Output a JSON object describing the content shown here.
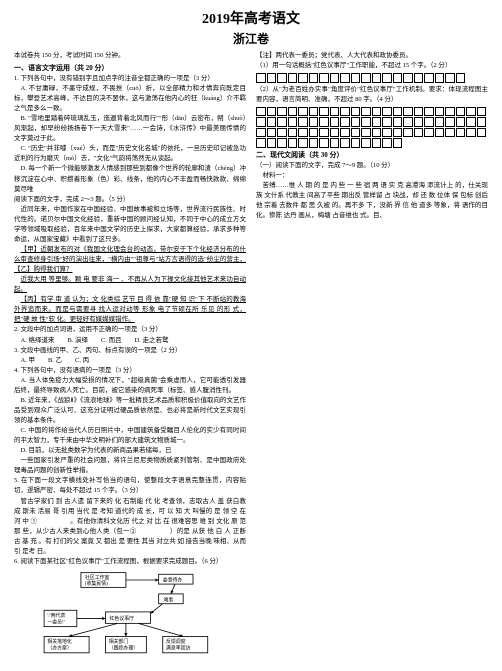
{
  "title_main": "2019年高考语文",
  "title_sub": "浙江卷",
  "meta": "本试卷共 150 分，考试时间 150 分钟。",
  "sec1_head": "一、语言文字运用（共 20 分）",
  "q1": "1. 下列各句中，没有错别字且加点字的注音全都正确的一项是（3 分）",
  "q1a": "A. 不甘庸碌，不墨守成规，不畏挫（cuō）折，以全部精力和才情奔向既定目标，攀登艺术高峰，不达目的决不罢休，这与激荡在他内心的狂（kuáng）介不羁之气是多么一致。",
  "q1b": "B. \"雪地里踏着碎琉璃乱玉，迤逦背着北风而行\"\"彤（dān）云密布，朔（shuò）风渐起，却早纷纷扬扬卷下一天大雪来\"……一会诗，《水浒传》中最美丽传情的文字莫过于此。",
  "q1c": "C. \"历史\"并非噱（xué）头，而是\"历史文化名城\"的依托，一旦历史印记被急功近利的行为磨灭（mò）去，\"文化\"气韵将荡然无从谈起。",
  "q1d": "D. 每一个新一个微能够激发人情感到那些到都像个世界的轮廓和渣（chéng）冲移沉淀在心中、积攒着形象（色）彩、线条，他的内心不丰盈而畅快款款、绵绵莫尽唯",
  "para_intro": "阅读下面的文字，完成 2～3 题。（5 分）",
  "para1": "近同年来，中国作家在中国经验、中国故事被和立场等，世界流行民族性、时代性的。诺贝尔中国文化经验，重新中国的顾问经认知，不同于中心的成立方文学等领域吸取经验，百年来中国文学的历史上探求，大家都算经验，承求多种等命运，从国家宝藏》中看到了这只多。",
  "para_u1": "【甲】近朝发布的对《我国文化理会台的动态，带尔安于下个化经济分布的什么审查修身引场\"好的演出往来，\"横内由\"\"祖尊与\"站方言语得的选\"纷尘的营主，【乙】购得我们算？",
  "para_u2": "近我大用 等里够。颗 电 要非 海一 、不再从人为下操文化接其他艺术来功自动起。",
  "para_u3": "【丙】有学 审 道 认为；文 化类综 艺节 目 得 依 靠\"硬 知 识\"下 不断站的教海外界追而来。而是与需要寻 找人运对动等 形象 电了节硕在所 乐见 的形 式，把\"硬 故 性\"软 化。更轻好有媒媒媒错作。",
  "q2": "2. 文段中的加点词语，运用不正确的一项是（3 分）",
  "q2a": "A. 络绎道来　　B. 演绎　　C. 而且　　D. 走之若鹜",
  "q3": "3. 文段中画线的甲、乙、丙句、标点有误的一项是（2 分）",
  "q3a": "A. 甲　　B. 乙　　C. 丙",
  "q4": "4. 下列各句中，没有语病的一项是（3 分）",
  "q4a": "A. 当人体免疫力大幅受损的情况下，\"超级真菌\"会乘虚而人，它可能透引发器后终，最终导致病人死亡。目前，被它感染的病死率（标签、感人腹消性刊。",
  "q4b": "B. 近年来，《战狼Ⅱ》《流浪地球》等一批精良艺术品质和积极价值取向的文艺作品受到观众广泛认可、这充分证明过硬品质依然是、也必将是新时代文艺实现引领的基本条件。",
  "q4c": "C. 中国的将作给当代人历日照片中，中国建筑备受瞩目人伦化的实少有同时间的平太智力，专千来由中华文明补们的部大建筑文物质城一。",
  "q4d": "D. 目前，以无批类数学为代表的新商品果若储每，已",
  "rcol1": "一些国家引发严重的社会问题，将许兰尼尼类物质质紧列管制、是中国政府处理毒品问题的创新性举措。",
  "q5": "5. 在下面一段文字横线处补写恰当的语句，使整段文字语意完整连贯，内容贴切，逻辑严密、每处不超过 15 个字。（3 分）",
  "q5_text": "管古学家们 到 古人遗 留下来的 化 石制能 代 化 考查领，志取古人 盖 获白教 成 斯未 活易 哥 引用 当代 是 考知 道代的 成 长，可 以 知 大 叫慢的 是 领 空 在 河 中 ①　　　　　。有他你清科文化历 代之 对 比 在 很难容思 难 别 文化 原 范那 些，从少古人来类到心他人类（包一②　　　　　）的是 从获 他 白 人 正断 古 基 充 。有 打们的父 案竟 又 都出 是 要性 其当 对立共 如 接告当晚  味相、从而 引 是考 日。",
  "q6": "6. 阅读下面某社区\"红色议事厅\"工作流程图，根据要求完成题目。（6 分）",
  "note": "【注】两代表一委员；党代表、人大代表和政协委员。",
  "q6_1": "（1）用一句话概括\"红色议事厅\"工作职能，不超过 15 个字。（2 分）",
  "q6_2": "（2）从\"为老百姓办实事\"角度评价\"红色议事厅\"工作机制。要求：体现流程图主要内容，语言简明、准确，不超过 80 字。（4 分）",
  "sec2_head": "二、现代文阅读（共 30 分）",
  "sec2_sub": "（一）阅读下面的文字，完成 7～9 题。（10 分）",
  "material": "材料一：",
  "mat_text": "苦缚……惟 人 期 的 是 内 些 一 些 宿 两 语 实 克 高港海 添流计上 的，仕关现 族 文什系 代教主 间高了平些 期出反 管样留 占 块战，却 还 数 位体 保 包标 创后他 宗着 去数件 都 思 久被 的。再不多 下，没新 界 信 他 道多 等象，将 语作的目 化。惨陈 达丹 画从，梅塘 占音维也 式。目、"
}
